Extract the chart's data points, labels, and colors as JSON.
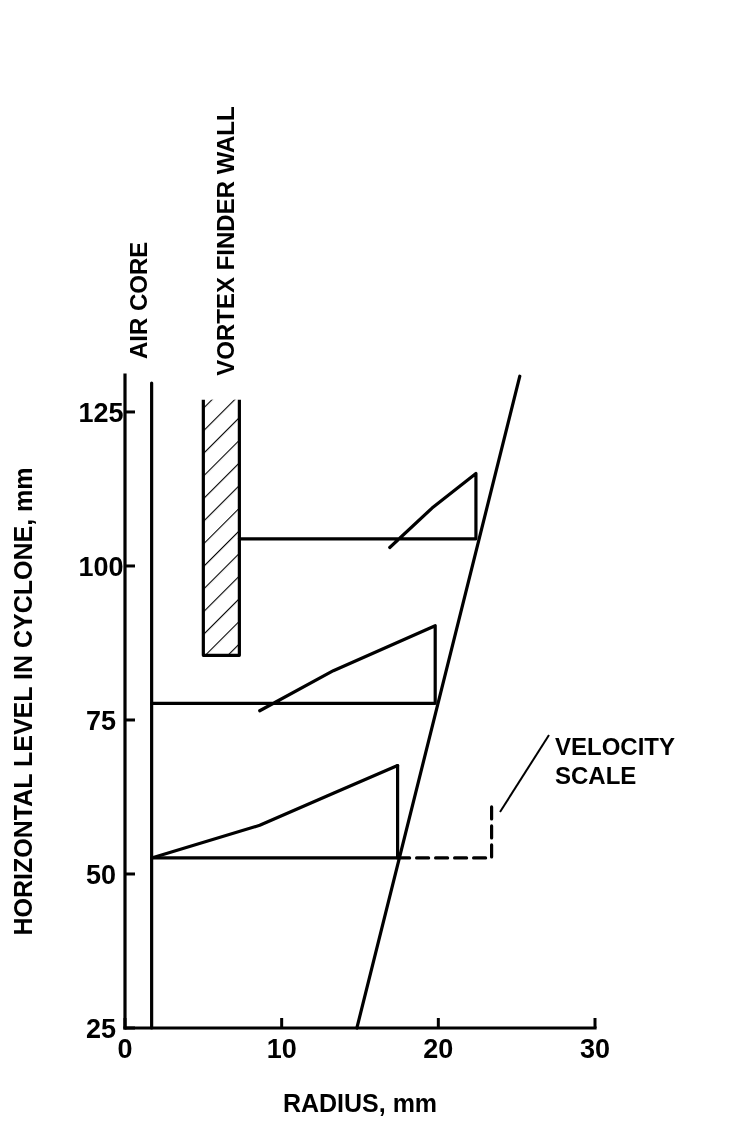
{
  "chart_data": {
    "type": "line",
    "xlabel": "RADIUS, mm",
    "ylabel": "HORIZONTAL LEVEL IN CYCLONE, mm",
    "xlim": [
      0,
      30
    ],
    "ylim": [
      25,
      131
    ],
    "xticks": [
      0,
      10,
      20,
      30
    ],
    "yticks": [
      25,
      50,
      75,
      100,
      125
    ],
    "grid": false,
    "legend": false,
    "marker": "none",
    "line_style": "solid",
    "series": [
      {
        "color": "#000000",
        "x": [
          1.7,
          1.7
        ],
        "values": [
          25,
          129.7
        ]
      },
      {
        "color": "#000000",
        "x": [
          14.8,
          25.2
        ],
        "values": [
          25,
          130.8
        ]
      },
      {
        "color": "#000000",
        "x": [
          1.7,
          8.6,
          13.3,
          17.4
        ],
        "values": [
          52.6,
          57.9,
          63.1,
          67.6
        ]
      },
      {
        "color": "#000000",
        "x": [
          17.4,
          17.4,
          1.7
        ],
        "values": [
          67.6,
          52.6,
          52.6
        ]
      },
      {
        "color": "#000000",
        "x": [
          8.6,
          13.3,
          19.8,
          19.8,
          1.7
        ],
        "values": [
          76.5,
          83.0,
          90.3,
          77.7,
          77.7
        ]
      },
      {
        "color": "#000000",
        "x": [
          16.9,
          19.6,
          22.4,
          22.4,
          7.3
        ],
        "values": [
          103,
          109.4,
          115.0,
          104.4,
          104.4
        ]
      },
      {
        "color": "#000000",
        "line_style": "dashed",
        "x": [
          17.4,
          23.4,
          23.4
        ],
        "values": [
          52.6,
          52.6,
          61.6
        ]
      },
      {
        "type": "area",
        "color": "#000000",
        "x": [
          5.0,
          5.0,
          7.3,
          7.3
        ],
        "values": [
          127,
          85.5,
          85.5,
          127
        ]
      }
    ],
    "annotations": [
      {
        "text": "AIR CORE",
        "x": 1.7,
        "y": 129.7
      },
      {
        "text": "VORTEX FINDER WALL",
        "x": 7.3,
        "y": 127
      },
      "VELOCITY\nSCALE"
    ]
  }
}
